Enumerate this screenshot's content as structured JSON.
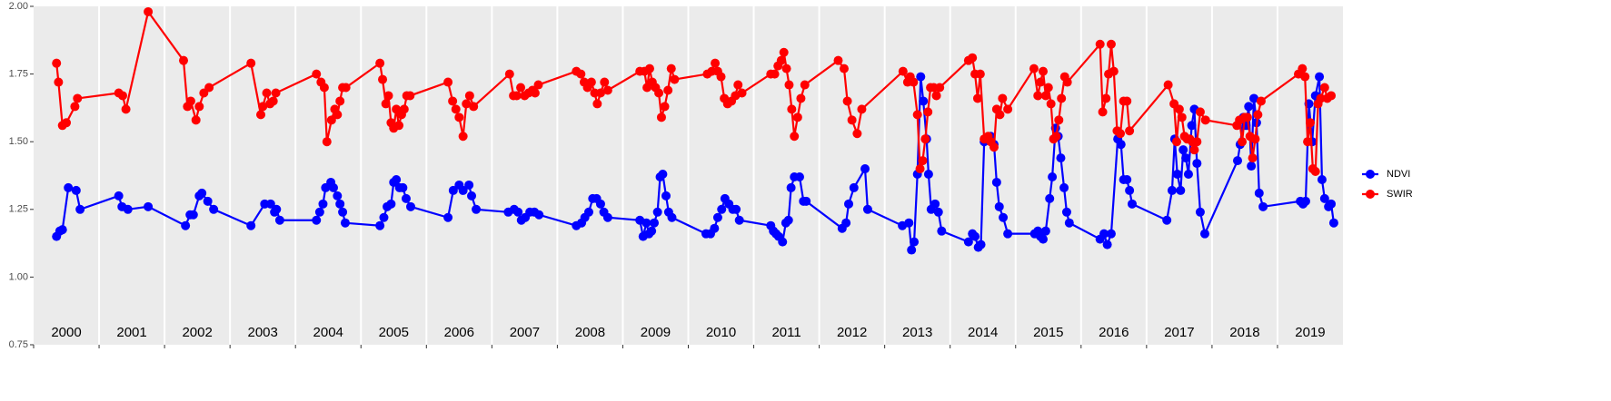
{
  "chart_data": {
    "type": "line",
    "xlim": [
      2000,
      2020
    ],
    "xticks": [
      2000,
      2001,
      2002,
      2003,
      2004,
      2005,
      2006,
      2007,
      2008,
      2009,
      2010,
      2011,
      2012,
      2013,
      2014,
      2015,
      2016,
      2017,
      2018,
      2019
    ],
    "ylim": [
      0.75,
      2.0
    ],
    "yticks": [
      {
        "value": 0.75,
        "label": "0.75"
      },
      {
        "value": 1.0,
        "label": "1.00"
      },
      {
        "value": 1.25,
        "label": "1.25"
      },
      {
        "value": 1.5,
        "label": "1.50"
      },
      {
        "value": 1.75,
        "label": "1.75"
      },
      {
        "value": 2.0,
        "label": "2.00"
      }
    ],
    "legend": "right",
    "series": [
      {
        "name": "NDVI",
        "color": "#0000ff",
        "x": [
          2000.35,
          2000.4,
          2000.44,
          2000.53,
          2000.65,
          2000.71,
          2001.3,
          2001.35,
          2001.44,
          2001.75,
          2002.32,
          2002.39,
          2002.44,
          2002.53,
          2002.57,
          2002.66,
          2002.75,
          2003.32,
          2003.53,
          2003.62,
          2003.68,
          2003.71,
          2003.76,
          2004.32,
          2004.37,
          2004.42,
          2004.46,
          2004.54,
          2004.58,
          2004.64,
          2004.68,
          2004.72,
          2004.76,
          2005.29,
          2005.35,
          2005.4,
          2005.46,
          2005.5,
          2005.54,
          2005.59,
          2005.64,
          2005.69,
          2005.76,
          2006.33,
          2006.41,
          2006.5,
          2006.56,
          2006.65,
          2006.69,
          2006.76,
          2007.25,
          2007.34,
          2007.4,
          2007.45,
          2007.51,
          2007.58,
          2007.65,
          2007.72,
          2008.29,
          2008.37,
          2008.42,
          2008.48,
          2008.54,
          2008.6,
          2008.66,
          2008.71,
          2008.77,
          2009.26,
          2009.31,
          2009.36,
          2009.4,
          2009.44,
          2009.48,
          2009.53,
          2009.57,
          2009.61,
          2009.66,
          2009.7,
          2009.75,
          2010.27,
          2010.34,
          2010.4,
          2010.45,
          2010.51,
          2010.56,
          2010.62,
          2010.68,
          2010.73,
          2010.78,
          2011.26,
          2011.3,
          2011.34,
          2011.38,
          2011.44,
          2011.49,
          2011.53,
          2011.57,
          2011.62,
          2011.7,
          2011.76,
          2011.8,
          2012.35,
          2012.41,
          2012.45,
          2012.53,
          2012.7,
          2012.74,
          2013.27,
          2013.37,
          2013.41,
          2013.45,
          2013.5,
          2013.55,
          2013.59,
          2013.64,
          2013.67,
          2013.71,
          2013.77,
          2013.82,
          2013.87,
          2014.28,
          2014.34,
          2014.38,
          2014.43,
          2014.47,
          2014.52,
          2014.62,
          2014.67,
          2014.71,
          2014.75,
          2014.81,
          2014.88,
          2015.29,
          2015.34,
          2015.38,
          2015.42,
          2015.46,
          2015.52,
          2015.56,
          2015.61,
          2015.65,
          2015.69,
          2015.74,
          2015.78,
          2015.82,
          2016.29,
          2016.35,
          2016.4,
          2016.46,
          2016.56,
          2016.61,
          2016.65,
          2016.7,
          2016.74,
          2016.78,
          2017.31,
          2017.39,
          2017.43,
          2017.47,
          2017.52,
          2017.56,
          2017.6,
          2017.64,
          2017.69,
          2017.73,
          2017.77,
          2017.82,
          2017.89,
          2018.39,
          2018.43,
          2018.48,
          2018.52,
          2018.56,
          2018.6,
          2018.64,
          2018.68,
          2018.72,
          2018.78,
          2019.35,
          2019.39,
          2019.43,
          2019.48,
          2019.53,
          2019.58,
          2019.64,
          2019.68,
          2019.72,
          2019.78,
          2019.82,
          2019.86
        ],
        "values": [
          1.15,
          1.17,
          1.175,
          1.33,
          1.32,
          1.25,
          1.3,
          1.26,
          1.25,
          1.26,
          1.19,
          1.23,
          1.23,
          1.3,
          1.31,
          1.28,
          1.25,
          1.19,
          1.27,
          1.27,
          1.24,
          1.25,
          1.21,
          1.21,
          1.24,
          1.27,
          1.33,
          1.35,
          1.33,
          1.3,
          1.27,
          1.24,
          1.2,
          1.19,
          1.22,
          1.26,
          1.27,
          1.35,
          1.36,
          1.33,
          1.33,
          1.29,
          1.26,
          1.22,
          1.32,
          1.34,
          1.32,
          1.34,
          1.3,
          1.25,
          1.24,
          1.25,
          1.24,
          1.21,
          1.22,
          1.24,
          1.24,
          1.23,
          1.19,
          1.2,
          1.22,
          1.24,
          1.29,
          1.29,
          1.27,
          1.24,
          1.22,
          1.21,
          1.15,
          1.2,
          1.16,
          1.17,
          1.2,
          1.24,
          1.37,
          1.38,
          1.3,
          1.24,
          1.22,
          1.16,
          1.16,
          1.18,
          1.22,
          1.25,
          1.29,
          1.27,
          1.25,
          1.25,
          1.21,
          1.19,
          1.17,
          1.16,
          1.15,
          1.13,
          1.2,
          1.21,
          1.33,
          1.37,
          1.37,
          1.28,
          1.28,
          1.18,
          1.2,
          1.27,
          1.33,
          1.4,
          1.25,
          1.19,
          1.2,
          1.1,
          1.13,
          1.38,
          1.74,
          1.65,
          1.51,
          1.38,
          1.25,
          1.27,
          1.24,
          1.17,
          1.13,
          1.16,
          1.15,
          1.11,
          1.12,
          1.5,
          1.52,
          1.49,
          1.35,
          1.26,
          1.22,
          1.16,
          1.16,
          1.17,
          1.15,
          1.14,
          1.17,
          1.29,
          1.37,
          1.55,
          1.52,
          1.44,
          1.33,
          1.24,
          1.2,
          1.14,
          1.16,
          1.12,
          1.16,
          1.51,
          1.49,
          1.36,
          1.36,
          1.32,
          1.27,
          1.21,
          1.32,
          1.51,
          1.38,
          1.32,
          1.47,
          1.44,
          1.38,
          1.56,
          1.62,
          1.42,
          1.24,
          1.16,
          1.43,
          1.49,
          1.59,
          1.56,
          1.63,
          1.41,
          1.66,
          1.57,
          1.31,
          1.26,
          1.28,
          1.27,
          1.28,
          1.64,
          1.5,
          1.67,
          1.74,
          1.36,
          1.29,
          1.26,
          1.27,
          1.2
        ]
      },
      {
        "name": "SWIR",
        "color": "#ff0000",
        "x": [
          2000.35,
          2000.38,
          2000.44,
          2000.5,
          2000.63,
          2000.67,
          2001.3,
          2001.36,
          2001.41,
          2001.75,
          2002.29,
          2002.35,
          2002.4,
          2002.48,
          2002.53,
          2002.6,
          2002.68,
          2003.32,
          2003.47,
          2003.5,
          2003.56,
          2003.61,
          2003.66,
          2003.7,
          2004.32,
          2004.39,
          2004.44,
          2004.48,
          2004.55,
          2004.6,
          2004.64,
          2004.68,
          2004.72,
          2004.77,
          2005.29,
          2005.33,
          2005.38,
          2005.42,
          2005.46,
          2005.5,
          2005.54,
          2005.58,
          2005.62,
          2005.66,
          2005.7,
          2005.75,
          2006.33,
          2006.4,
          2006.45,
          2006.5,
          2006.56,
          2006.61,
          2006.66,
          2006.72,
          2007.27,
          2007.33,
          2007.38,
          2007.44,
          2007.5,
          2007.56,
          2007.62,
          2007.66,
          2007.71,
          2008.29,
          2008.36,
          2008.41,
          2008.46,
          2008.52,
          2008.57,
          2008.61,
          2008.66,
          2008.72,
          2008.77,
          2009.26,
          2009.33,
          2009.37,
          2009.41,
          2009.45,
          2009.5,
          2009.55,
          2009.59,
          2009.64,
          2009.69,
          2009.74,
          2009.79,
          2010.29,
          2010.36,
          2010.41,
          2010.45,
          2010.5,
          2010.55,
          2010.6,
          2010.66,
          2010.72,
          2010.76,
          2010.82,
          2011.26,
          2011.32,
          2011.37,
          2011.42,
          2011.46,
          2011.5,
          2011.54,
          2011.58,
          2011.62,
          2011.67,
          2011.72,
          2011.78,
          2012.29,
          2012.38,
          2012.43,
          2012.5,
          2012.58,
          2012.65,
          2013.28,
          2013.35,
          2013.39,
          2013.44,
          2013.5,
          2013.54,
          2013.58,
          2013.62,
          2013.66,
          2013.7,
          2013.75,
          2013.79,
          2013.84,
          2014.28,
          2014.34,
          2014.38,
          2014.42,
          2014.46,
          2014.52,
          2014.58,
          2014.62,
          2014.67,
          2014.71,
          2014.76,
          2014.8,
          2014.88,
          2015.28,
          2015.34,
          2015.38,
          2015.42,
          2015.46,
          2015.5,
          2015.54,
          2015.58,
          2015.62,
          2015.66,
          2015.7,
          2015.75,
          2015.79,
          2016.29,
          2016.33,
          2016.38,
          2016.42,
          2016.46,
          2016.5,
          2016.55,
          2016.6,
          2016.65,
          2016.7,
          2016.74,
          2017.33,
          2017.42,
          2017.46,
          2017.5,
          2017.54,
          2017.58,
          2017.62,
          2017.66,
          2017.7,
          2017.73,
          2017.77,
          2017.82,
          2017.9,
          2018.38,
          2018.42,
          2018.46,
          2018.5,
          2018.54,
          2018.58,
          2018.62,
          2018.66,
          2018.7,
          2018.75,
          2019.32,
          2019.38,
          2019.42,
          2019.46,
          2019.5,
          2019.54,
          2019.58,
          2019.62,
          2019.66,
          2019.72,
          2019.76,
          2019.82
        ],
        "values": [
          1.79,
          1.72,
          1.56,
          1.57,
          1.63,
          1.66,
          1.68,
          1.67,
          1.62,
          1.98,
          1.8,
          1.63,
          1.65,
          1.58,
          1.63,
          1.68,
          1.7,
          1.79,
          1.6,
          1.63,
          1.68,
          1.64,
          1.65,
          1.68,
          1.75,
          1.72,
          1.7,
          1.5,
          1.58,
          1.62,
          1.6,
          1.65,
          1.7,
          1.7,
          1.79,
          1.73,
          1.64,
          1.67,
          1.57,
          1.55,
          1.62,
          1.56,
          1.6,
          1.62,
          1.67,
          1.67,
          1.72,
          1.65,
          1.62,
          1.59,
          1.52,
          1.64,
          1.67,
          1.63,
          1.75,
          1.67,
          1.67,
          1.7,
          1.67,
          1.68,
          1.69,
          1.68,
          1.71,
          1.76,
          1.75,
          1.72,
          1.7,
          1.72,
          1.68,
          1.64,
          1.68,
          1.72,
          1.69,
          1.76,
          1.76,
          1.7,
          1.77,
          1.72,
          1.7,
          1.68,
          1.59,
          1.63,
          1.69,
          1.77,
          1.73,
          1.75,
          1.76,
          1.79,
          1.76,
          1.74,
          1.66,
          1.64,
          1.65,
          1.67,
          1.71,
          1.68,
          1.75,
          1.75,
          1.78,
          1.8,
          1.83,
          1.77,
          1.71,
          1.62,
          1.52,
          1.59,
          1.66,
          1.71,
          1.8,
          1.77,
          1.65,
          1.58,
          1.53,
          1.62,
          1.76,
          1.72,
          1.74,
          1.72,
          1.6,
          1.4,
          1.43,
          1.51,
          1.61,
          1.7,
          1.7,
          1.67,
          1.7,
          1.8,
          1.81,
          1.75,
          1.66,
          1.75,
          1.51,
          1.52,
          1.5,
          1.48,
          1.62,
          1.6,
          1.66,
          1.62,
          1.77,
          1.67,
          1.72,
          1.76,
          1.67,
          1.7,
          1.64,
          1.51,
          1.52,
          1.58,
          1.66,
          1.74,
          1.72,
          1.86,
          1.61,
          1.66,
          1.75,
          1.86,
          1.76,
          1.54,
          1.53,
          1.65,
          1.65,
          1.54,
          1.71,
          1.64,
          1.5,
          1.62,
          1.59,
          1.52,
          1.51,
          1.51,
          1.5,
          1.47,
          1.5,
          1.61,
          1.58,
          1.56,
          1.58,
          1.5,
          1.59,
          1.59,
          1.52,
          1.44,
          1.51,
          1.6,
          1.65,
          1.75,
          1.77,
          1.74,
          1.5,
          1.57,
          1.4,
          1.39,
          1.64,
          1.66,
          1.7,
          1.66,
          1.67
        ]
      }
    ]
  }
}
